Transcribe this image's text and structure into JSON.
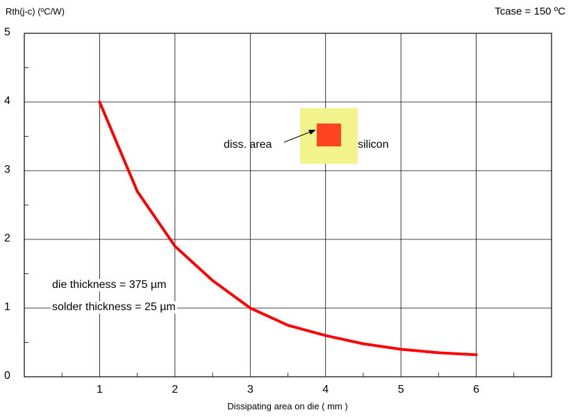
{
  "chart_data": {
    "type": "line",
    "ylabel": "Rth(j-c) (ºC/W)",
    "xlabel": "Dissipating area on die ( mm )",
    "corner_text": "Tcase = 150 ºC",
    "xlim": [
      0,
      7
    ],
    "ylim": [
      0,
      5
    ],
    "x_ticks": [
      "1",
      "2",
      "3",
      "4",
      "5",
      "6"
    ],
    "y_ticks": [
      "0",
      "1",
      "2",
      "3",
      "4",
      "5"
    ],
    "grid": true,
    "series": [
      {
        "color": "#ff0000",
        "x": [
          1,
          1.5,
          2,
          2.5,
          3,
          3.5,
          4,
          4.5,
          5,
          5.5,
          6
        ],
        "y": [
          4.0,
          2.7,
          1.9,
          1.4,
          1.0,
          0.75,
          0.6,
          0.48,
          0.4,
          0.35,
          0.32
        ]
      }
    ],
    "annotations": {
      "die_thickness": "die thickness = 375 µm",
      "solder_thickness": "solder thickness = 25 µm",
      "inset_diss_label": "diss. area",
      "inset_silicon_label": "silicon"
    },
    "inset_colors": {
      "silicon": "#f3f38c",
      "diss_area": "#ff4422"
    }
  }
}
